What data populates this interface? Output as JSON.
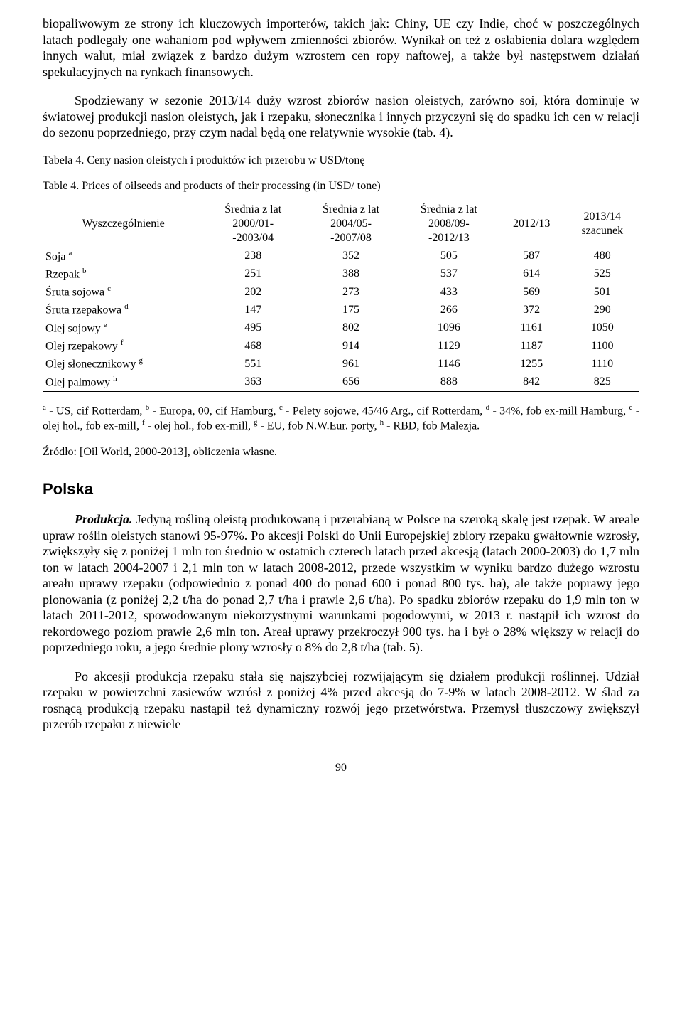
{
  "paragraphs": {
    "p1": "biopaliwowym ze strony ich kluczowych importerów, takich jak: Chiny, UE czy Indie, choć w poszczególnych latach podlegały one wahaniom pod wpływem zmienności zbiorów. Wynikał on też z osłabienia dolara względem innych walut, miał związek z bardzo dużym wzrostem cen ropy naftowej, a także był następstwem działań spekulacyjnych na rynkach finansowych.",
    "p2": "Spodziewany w sezonie 2013/14 duży wzrost zbiorów nasion oleistych, zarówno soi, która dominuje w światowej produkcji nasion oleistych, jak i rzepaku, słonecznika i innych przyczyni się do spadku ich cen w relacji do sezonu poprzedniego, przy czym nadal będą one relatywnie wysokie (tab. 4)."
  },
  "table": {
    "title_pl": "Tabela 4. Ceny nasion oleistych i produktów ich przerobu w USD/tonę",
    "title_en": "Table 4. Prices of oilseeds and products of their processing (in USD/ tone)",
    "columns": {
      "col0": "Wyszczególnienie",
      "col1_l1": "Średnia z lat",
      "col1_l2": "2000/01-",
      "col1_l3": "-2003/04",
      "col2_l1": "Średnia z lat",
      "col2_l2": "2004/05-",
      "col2_l3": "-2007/08",
      "col3_l1": "Średnia z lat",
      "col3_l2": "2008/09-",
      "col3_l3": "-2012/13",
      "col4": "2012/13",
      "col5_l1": "2013/14",
      "col5_l2": "szacunek"
    },
    "rows": [
      {
        "label": "Soja",
        "sup": "a",
        "v": [
          "238",
          "352",
          "505",
          "587",
          "480"
        ]
      },
      {
        "label": "Rzepak",
        "sup": "b",
        "v": [
          "251",
          "388",
          "537",
          "614",
          "525"
        ]
      },
      {
        "label": "Śruta sojowa",
        "sup": "c",
        "v": [
          "202",
          "273",
          "433",
          "569",
          "501"
        ]
      },
      {
        "label": "Śruta rzepakowa",
        "sup": "d",
        "v": [
          "147",
          "175",
          "266",
          "372",
          "290"
        ]
      },
      {
        "label": "Olej sojowy",
        "sup": "e",
        "v": [
          "495",
          "802",
          "1096",
          "1161",
          "1050"
        ]
      },
      {
        "label": "Olej rzepakowy",
        "sup": "f",
        "v": [
          "468",
          "914",
          "1129",
          "1187",
          "1100"
        ]
      },
      {
        "label": "Olej słonecznikowy",
        "sup": "g",
        "v": [
          "551",
          "961",
          "1146",
          "1255",
          "1110"
        ]
      },
      {
        "label": "Olej palmowy",
        "sup": "h",
        "v": [
          "363",
          "656",
          "888",
          "842",
          "825"
        ]
      }
    ],
    "footnote": {
      "a_sup": "a",
      "a_txt": " - US, cif Rotterdam, ",
      "b_sup": "b",
      "b_txt": " - Europa, 00, cif Hamburg, ",
      "c_sup": "c",
      "c_txt": " - Pelety sojowe, 45/46 Arg., cif Rotterdam, ",
      "d_sup": "d",
      "d_txt": " - 34%, fob ex-mill Hamburg, ",
      "e_sup": "e",
      "e_txt": " - olej hol., fob ex-mill, ",
      "f_sup": "f",
      "f_txt": " - olej hol., fob ex-mill, ",
      "g_sup": "g",
      "g_txt": " - EU, fob N.W.Eur. porty, ",
      "h_sup": "h",
      "h_txt": " - RBD, fob Malezja."
    },
    "source": "Źródło: [Oil World, 2000-2013], obliczenia własne."
  },
  "section": {
    "heading": "Polska",
    "runin": "Produkcja.",
    "p3": " Jedyną rośliną oleistą produkowaną i przerabianą w Polsce na szeroką skalę jest rzepak. W areale upraw roślin oleistych stanowi 95-97%. Po akcesji Polski do Unii Europejskiej zbiory rzepaku gwałtownie wzrosły, zwiększyły się z poniżej 1 mln ton średnio w ostatnich czterech latach przed akcesją (latach 2000-2003) do 1,7 mln ton w latach 2004-2007 i 2,1 mln ton w latach 2008-2012, przede wszystkim w wyniku bardzo dużego wzrostu areału uprawy rzepaku (odpowiednio z ponad 400 do ponad 600 i ponad 800 tys. ha), ale także poprawy jego plonowania (z poniżej 2,2 t/ha do ponad 2,7 t/ha i prawie 2,6 t/ha). Po spadku zbiorów rzepaku do 1,9 mln ton w latach 2011-2012, spowodowanym niekorzystnymi warunkami pogodowymi, w 2013 r. nastąpił ich wzrost do rekordowego poziom prawie 2,6 mln ton. Areał uprawy przekroczył 900 tys. ha i był o 28% większy w relacji do poprzedniego roku, a jego średnie plony wzrosły o 8% do 2,8 t/ha (tab. 5).",
    "p4": "Po akcesji produkcja rzepaku stała się najszybciej rozwijającym się działem produkcji roślinnej. Udział rzepaku w powierzchni zasiewów wzrósł z poniżej 4% przed akcesją do 7-9% w latach 2008-2012. W ślad za rosnącą produkcją rzepaku nastąpił też dynamiczny rozwój jego przetwórstwa. Przemysł tłuszczowy zwiększył przerób rzepaku z niewiele"
  },
  "page_number": "90"
}
